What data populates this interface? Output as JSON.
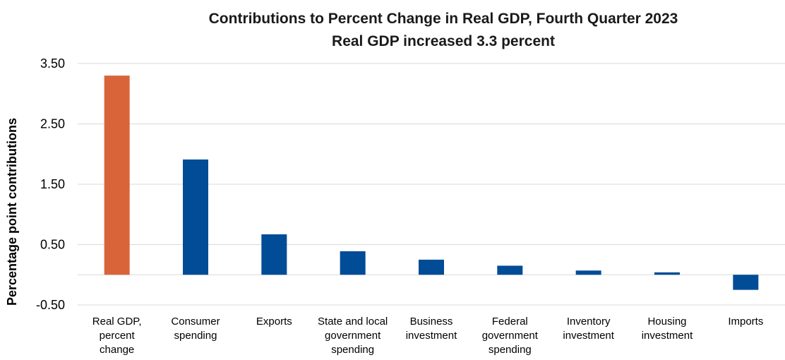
{
  "chart_data": {
    "type": "bar",
    "title": "Contributions to Percent Change in Real GDP, Fourth Quarter 2023",
    "subtitle": "Real GDP increased 3.3 percent",
    "xlabel": "",
    "ylabel": "Percentage point contributions",
    "ylim": [
      -0.5,
      3.5
    ],
    "yticks": [
      3.5,
      2.5,
      1.5,
      0.5,
      -0.5
    ],
    "ytick_labels": [
      "3.50",
      "2.50",
      "1.50",
      "0.50",
      "-0.50"
    ],
    "grid": true,
    "legend": "none",
    "categories": [
      [
        "Real GDP,",
        "percent",
        "change"
      ],
      [
        "Consumer",
        "spending"
      ],
      [
        "Exports"
      ],
      [
        "State and local",
        "government",
        "spending"
      ],
      [
        "Business",
        "investment"
      ],
      [
        "Federal",
        "government",
        "spending"
      ],
      [
        "Inventory",
        "investment"
      ],
      [
        "Housing",
        "investment"
      ],
      [
        "Imports"
      ]
    ],
    "values": [
      3.3,
      1.91,
      0.67,
      0.39,
      0.25,
      0.15,
      0.07,
      0.04,
      -0.25
    ],
    "colors": [
      "#D9643A",
      "#004C97",
      "#004C97",
      "#004C97",
      "#004C97",
      "#004C97",
      "#004C97",
      "#004C97",
      "#004C97"
    ]
  }
}
